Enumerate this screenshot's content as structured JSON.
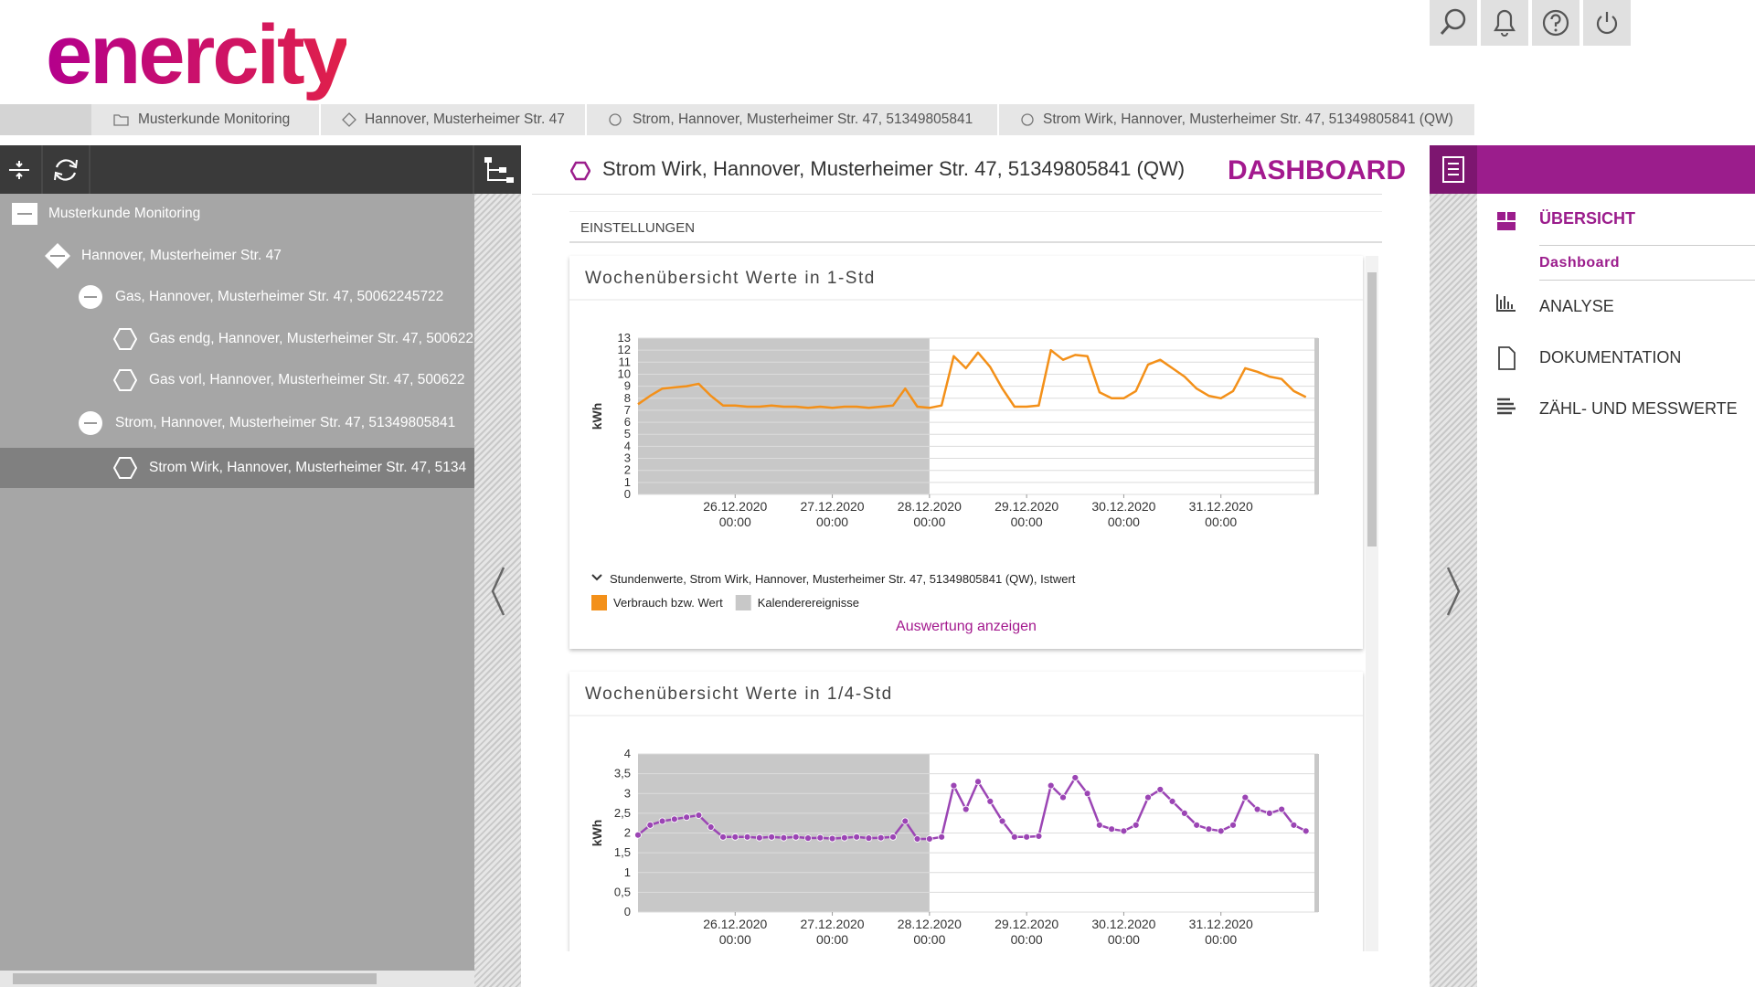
{
  "header": {
    "logo": "enercity"
  },
  "breadcrumb": [
    "Musterkunde Monitoring",
    "Hannover, Musterheimer Str. 47",
    "Strom, Hannover, Musterheimer Str. 47, 51349805841",
    "Strom Wirk, Hannover, Musterheimer Str. 47, 51349805841 (QW)"
  ],
  "tree": [
    "Musterkunde Monitoring",
    "Hannover, Musterheimer Str. 47",
    "Gas, Hannover, Musterheimer Str. 47, 50062245722",
    "Gas endg, Hannover, Musterheimer Str. 47, 500622",
    "Gas vorl, Hannover, Musterheimer Str. 47, 500622",
    "Strom, Hannover, Musterheimer Str. 47, 51349805841",
    "Strom Wirk, Hannover, Musterheimer Str. 47, 5134"
  ],
  "content": {
    "title": "Strom Wirk, Hannover, Musterheimer Str. 47, 51349805841 (QW)",
    "heading": "DASHBOARD",
    "settings": "EINSTELLUNGEN"
  },
  "nav": {
    "items": [
      "ÜBERSICHT",
      "ANALYSE",
      "DOKUMENTATION",
      "ZÄHL- UND MESSWERTE"
    ],
    "sub_item": "Dashboard"
  },
  "chart_data": [
    {
      "type": "line",
      "title": "Wochenübersicht Werte in 1-Std",
      "y_label": "kWh",
      "legend_title": "Stundenwerte, Strom Wirk, Hannover, Musterheimer Str. 47, 51349805841 (QW), Istwert",
      "link": "Auswertung anzeigen",
      "x": [
        "25.12.2020 00:00",
        "25.12.2020 03:00",
        "25.12.2020 06:00",
        "25.12.2020 09:00",
        "25.12.2020 12:00",
        "25.12.2020 15:00",
        "25.12.2020 18:00",
        "25.12.2020 21:00",
        "26.12.2020 00:00",
        "26.12.2020 03:00",
        "26.12.2020 06:00",
        "26.12.2020 09:00",
        "26.12.2020 12:00",
        "26.12.2020 15:00",
        "26.12.2020 18:00",
        "26.12.2020 21:00",
        "27.12.2020 00:00",
        "27.12.2020 03:00",
        "27.12.2020 06:00",
        "27.12.2020 09:00",
        "27.12.2020 12:00",
        "27.12.2020 15:00",
        "27.12.2020 18:00",
        "27.12.2020 21:00",
        "28.12.2020 00:00",
        "28.12.2020 03:00",
        "28.12.2020 06:00",
        "28.12.2020 09:00",
        "28.12.2020 12:00",
        "28.12.2020 15:00",
        "28.12.2020 18:00",
        "28.12.2020 21:00",
        "29.12.2020 00:00",
        "29.12.2020 03:00",
        "29.12.2020 06:00",
        "29.12.2020 09:00",
        "29.12.2020 12:00",
        "29.12.2020 15:00",
        "29.12.2020 18:00",
        "29.12.2020 21:00",
        "30.12.2020 00:00",
        "30.12.2020 03:00",
        "30.12.2020 06:00",
        "30.12.2020 09:00",
        "30.12.2020 12:00",
        "30.12.2020 15:00",
        "30.12.2020 18:00",
        "30.12.2020 21:00",
        "31.12.2020 00:00",
        "31.12.2020 03:00",
        "31.12.2020 06:00",
        "31.12.2020 09:00",
        "31.12.2020 12:00",
        "31.12.2020 15:00",
        "31.12.2020 18:00",
        "31.12.2020 21:00"
      ],
      "series": [
        {
          "name": "Verbrauch bzw. Wert",
          "color": "#f39019",
          "values": [
            7.5,
            8.2,
            8.8,
            8.9,
            9.0,
            9.2,
            8.2,
            7.4,
            7.4,
            7.3,
            7.3,
            7.4,
            7.3,
            7.3,
            7.2,
            7.3,
            7.2,
            7.3,
            7.3,
            7.2,
            7.3,
            7.4,
            8.8,
            7.3,
            7.2,
            7.4,
            11.5,
            10.5,
            11.8,
            10.6,
            8.8,
            7.3,
            7.3,
            7.4,
            12.0,
            11.2,
            11.6,
            11.5,
            8.5,
            8.0,
            8.0,
            8.6,
            10.8,
            11.2,
            10.5,
            9.8,
            8.8,
            8.2,
            8.0,
            8.6,
            10.5,
            10.2,
            9.8,
            9.6,
            8.6,
            8.1
          ]
        }
      ],
      "event": {
        "name": "Kalenderereignisse",
        "color": "#c8c8c8",
        "span": [
          "25.12.2020 00:00",
          "28.12.2020 00:00"
        ]
      },
      "xlim": [
        "25.12.2020 00:00",
        "01.01.2021 00:00"
      ],
      "xticks": [
        "26.12.2020\n00:00",
        "27.12.2020\n00:00",
        "28.12.2020\n00:00",
        "29.12.2020\n00:00",
        "30.12.2020\n00:00",
        "31.12.2020\n00:00"
      ],
      "ylim": [
        0,
        13
      ],
      "yticks": [
        0,
        1,
        2,
        3,
        4,
        5,
        6,
        7,
        8,
        9,
        10,
        11,
        12,
        13
      ],
      "grid": true,
      "markers": false
    },
    {
      "type": "line",
      "title": "Wochenübersicht Werte in 1/4-Std",
      "y_label": "kWh",
      "x": [
        "25.12.2020 00:00",
        "25.12.2020 03:00",
        "25.12.2020 06:00",
        "25.12.2020 09:00",
        "25.12.2020 12:00",
        "25.12.2020 15:00",
        "25.12.2020 18:00",
        "25.12.2020 21:00",
        "26.12.2020 00:00",
        "26.12.2020 03:00",
        "26.12.2020 06:00",
        "26.12.2020 09:00",
        "26.12.2020 12:00",
        "26.12.2020 15:00",
        "26.12.2020 18:00",
        "26.12.2020 21:00",
        "27.12.2020 00:00",
        "27.12.2020 03:00",
        "27.12.2020 06:00",
        "27.12.2020 09:00",
        "27.12.2020 12:00",
        "27.12.2020 15:00",
        "27.12.2020 18:00",
        "27.12.2020 21:00",
        "28.12.2020 00:00",
        "28.12.2020 03:00",
        "28.12.2020 06:00",
        "28.12.2020 09:00",
        "28.12.2020 12:00",
        "28.12.2020 15:00",
        "28.12.2020 18:00",
        "28.12.2020 21:00",
        "29.12.2020 00:00",
        "29.12.2020 03:00",
        "29.12.2020 06:00",
        "29.12.2020 09:00",
        "29.12.2020 12:00",
        "29.12.2020 15:00",
        "29.12.2020 18:00",
        "29.12.2020 21:00",
        "30.12.2020 00:00",
        "30.12.2020 03:00",
        "30.12.2020 06:00",
        "30.12.2020 09:00",
        "30.12.2020 12:00",
        "30.12.2020 15:00",
        "30.12.2020 18:00",
        "30.12.2020 21:00",
        "31.12.2020 00:00",
        "31.12.2020 03:00",
        "31.12.2020 06:00",
        "31.12.2020 09:00",
        "31.12.2020 12:00",
        "31.12.2020 15:00",
        "31.12.2020 18:00",
        "31.12.2020 21:00"
      ],
      "series": [
        {
          "color": "#9b45b4",
          "values": [
            1.95,
            2.2,
            2.3,
            2.35,
            2.4,
            2.45,
            2.15,
            1.9,
            1.9,
            1.9,
            1.88,
            1.9,
            1.88,
            1.9,
            1.87,
            1.88,
            1.86,
            1.88,
            1.9,
            1.87,
            1.88,
            1.9,
            2.3,
            1.85,
            1.85,
            1.9,
            3.2,
            2.6,
            3.3,
            2.8,
            2.3,
            1.9,
            1.9,
            1.92,
            3.2,
            2.9,
            3.4,
            3.0,
            2.2,
            2.1,
            2.05,
            2.2,
            2.9,
            3.1,
            2.8,
            2.5,
            2.2,
            2.1,
            2.05,
            2.2,
            2.9,
            2.6,
            2.5,
            2.6,
            2.2,
            2.05
          ]
        }
      ],
      "event": {
        "color": "#c8c8c8",
        "span": [
          "25.12.2020 00:00",
          "28.12.2020 00:00"
        ]
      },
      "xlim": [
        "25.12.2020 00:00",
        "01.01.2021 00:00"
      ],
      "xticks": [
        "26.12.2020\n00:00",
        "27.12.2020\n00:00",
        "28.12.2020\n00:00",
        "29.12.2020\n00:00",
        "30.12.2020\n00:00",
        "31.12.2020\n00:00"
      ],
      "ylim": [
        0,
        4
      ],
      "yticks": [
        0,
        {
          "value": 0.5,
          "label": "0,5"
        },
        1,
        {
          "value": 1.5,
          "label": "1,5"
        },
        2,
        {
          "value": 2.5,
          "label": "2,5"
        },
        3,
        {
          "value": 3.5,
          "label": "3,5"
        },
        4
      ],
      "grid": true,
      "markers": true
    }
  ]
}
